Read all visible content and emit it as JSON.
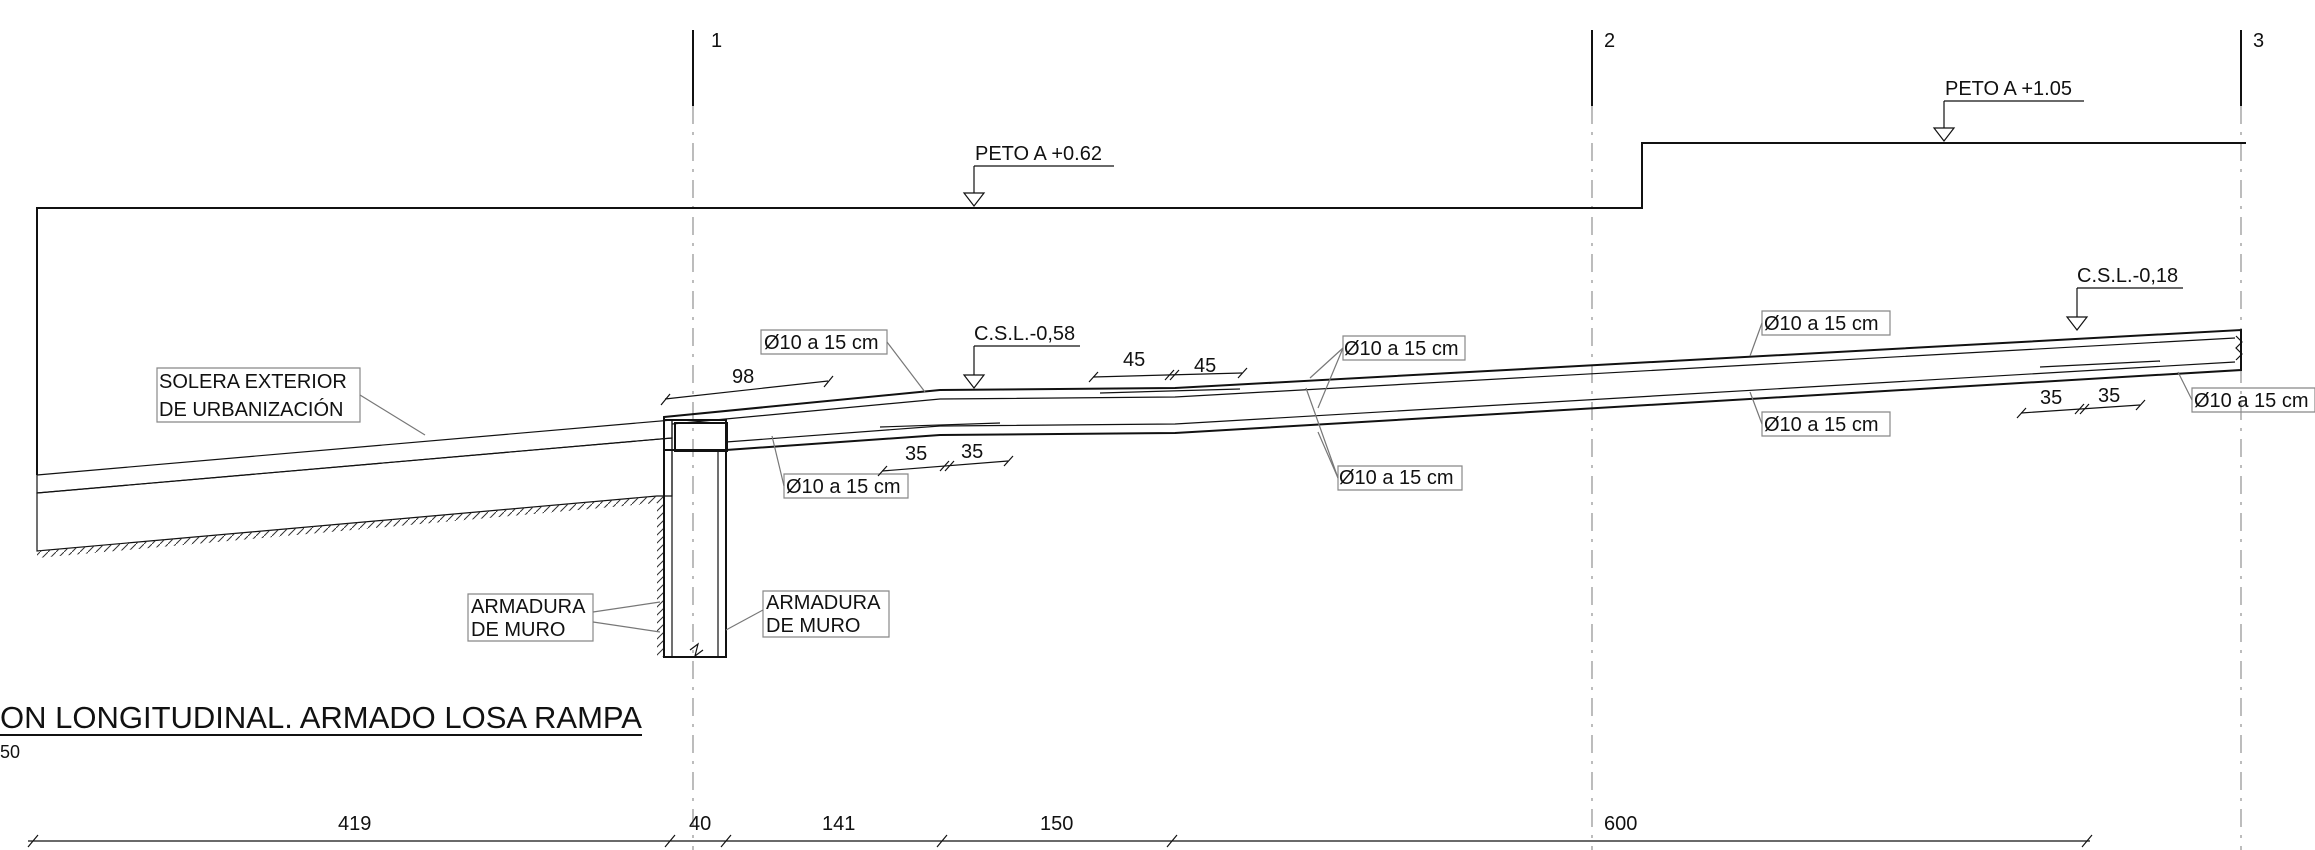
{
  "axes": [
    "1",
    "2",
    "3"
  ],
  "levels": {
    "peto_low": "PETO A +0.62",
    "peto_high": "PETO A +1.05",
    "csl_low": "C.S.L.-0,58",
    "csl_high": "C.S.L.-0,18"
  },
  "labels": {
    "solera_line1": "SOLERA EXTERIOR",
    "solera_line2": "DE URBANIZACIÓN",
    "armadura_left_line1": "ARMADURA",
    "armadura_left_line2": "DE MURO",
    "armadura_right_line1": "ARMADURA",
    "armadura_right_line2": "DE MURO"
  },
  "rebar": {
    "r1": "Ø10 a 15 cm",
    "r2": "Ø10 a 15 cm",
    "r3": "Ø10 a 15 cm",
    "r4": "Ø10 a 15 cm",
    "r5": "Ø10 a 15 cm",
    "r6": "Ø10 a 15 cm",
    "r7": "Ø10 a 15 cm",
    "r8": "Ø10 a 15 cm"
  },
  "dims_local": {
    "d98": "98",
    "d45a": "45",
    "d45b": "45",
    "d35a": "35",
    "d35b": "35",
    "d35c": "35",
    "d35d": "35"
  },
  "dims_bottom": {
    "d419": "419",
    "d40": "40",
    "d141": "141",
    "d150": "150",
    "d600": "600"
  },
  "title": {
    "main": "ON LONGITUDINAL. ARMADO LOSA RAMPA",
    "scale": "50"
  }
}
